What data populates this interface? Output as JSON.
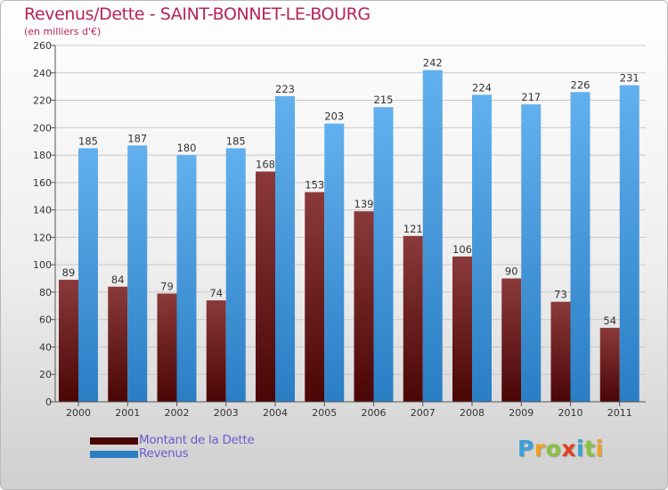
{
  "title": "Revenus/Dette - SAINT-BONNET-LE-BOURG",
  "subtitle": "(en milliers d'€)",
  "colors": {
    "title": "#b5245a",
    "dette_top": "#8b3a3a",
    "dette_bottom": "#4a0505",
    "revenus_top": "#62b0ee",
    "revenus_bottom": "#2a7ec4",
    "legend_text": "#6a5acd"
  },
  "legend": {
    "dette_label": "Montant de la Dette",
    "revenus_label": "Revenus"
  },
  "brand": {
    "letters": [
      "P",
      "r",
      "o",
      "x",
      "i",
      "t",
      "i"
    ],
    "colors": [
      "#3aa0d8",
      "#f0a020",
      "#8ac040",
      "#e04020",
      "#3aa0d8",
      "#8ac040",
      "#f0a020"
    ]
  },
  "chart_data": {
    "type": "bar",
    "title": "Revenus/Dette - SAINT-BONNET-LE-BOURG",
    "ylabel": "(en milliers d'€)",
    "categories": [
      "2000",
      "2001",
      "2002",
      "2003",
      "2004",
      "2005",
      "2006",
      "2007",
      "2008",
      "2009",
      "2010",
      "2011"
    ],
    "series": [
      {
        "name": "Montant de la Dette",
        "values": [
          89,
          84,
          79,
          74,
          168,
          153,
          139,
          121,
          106,
          90,
          73,
          54
        ]
      },
      {
        "name": "Revenus",
        "values": [
          185,
          187,
          180,
          185,
          223,
          203,
          215,
          242,
          224,
          217,
          226,
          231
        ]
      }
    ],
    "ylim": [
      0,
      260
    ],
    "yticks": [
      0,
      20,
      40,
      60,
      80,
      100,
      120,
      140,
      160,
      180,
      200,
      220,
      240,
      260
    ],
    "grid": true,
    "legend_position": "bottom-left"
  }
}
